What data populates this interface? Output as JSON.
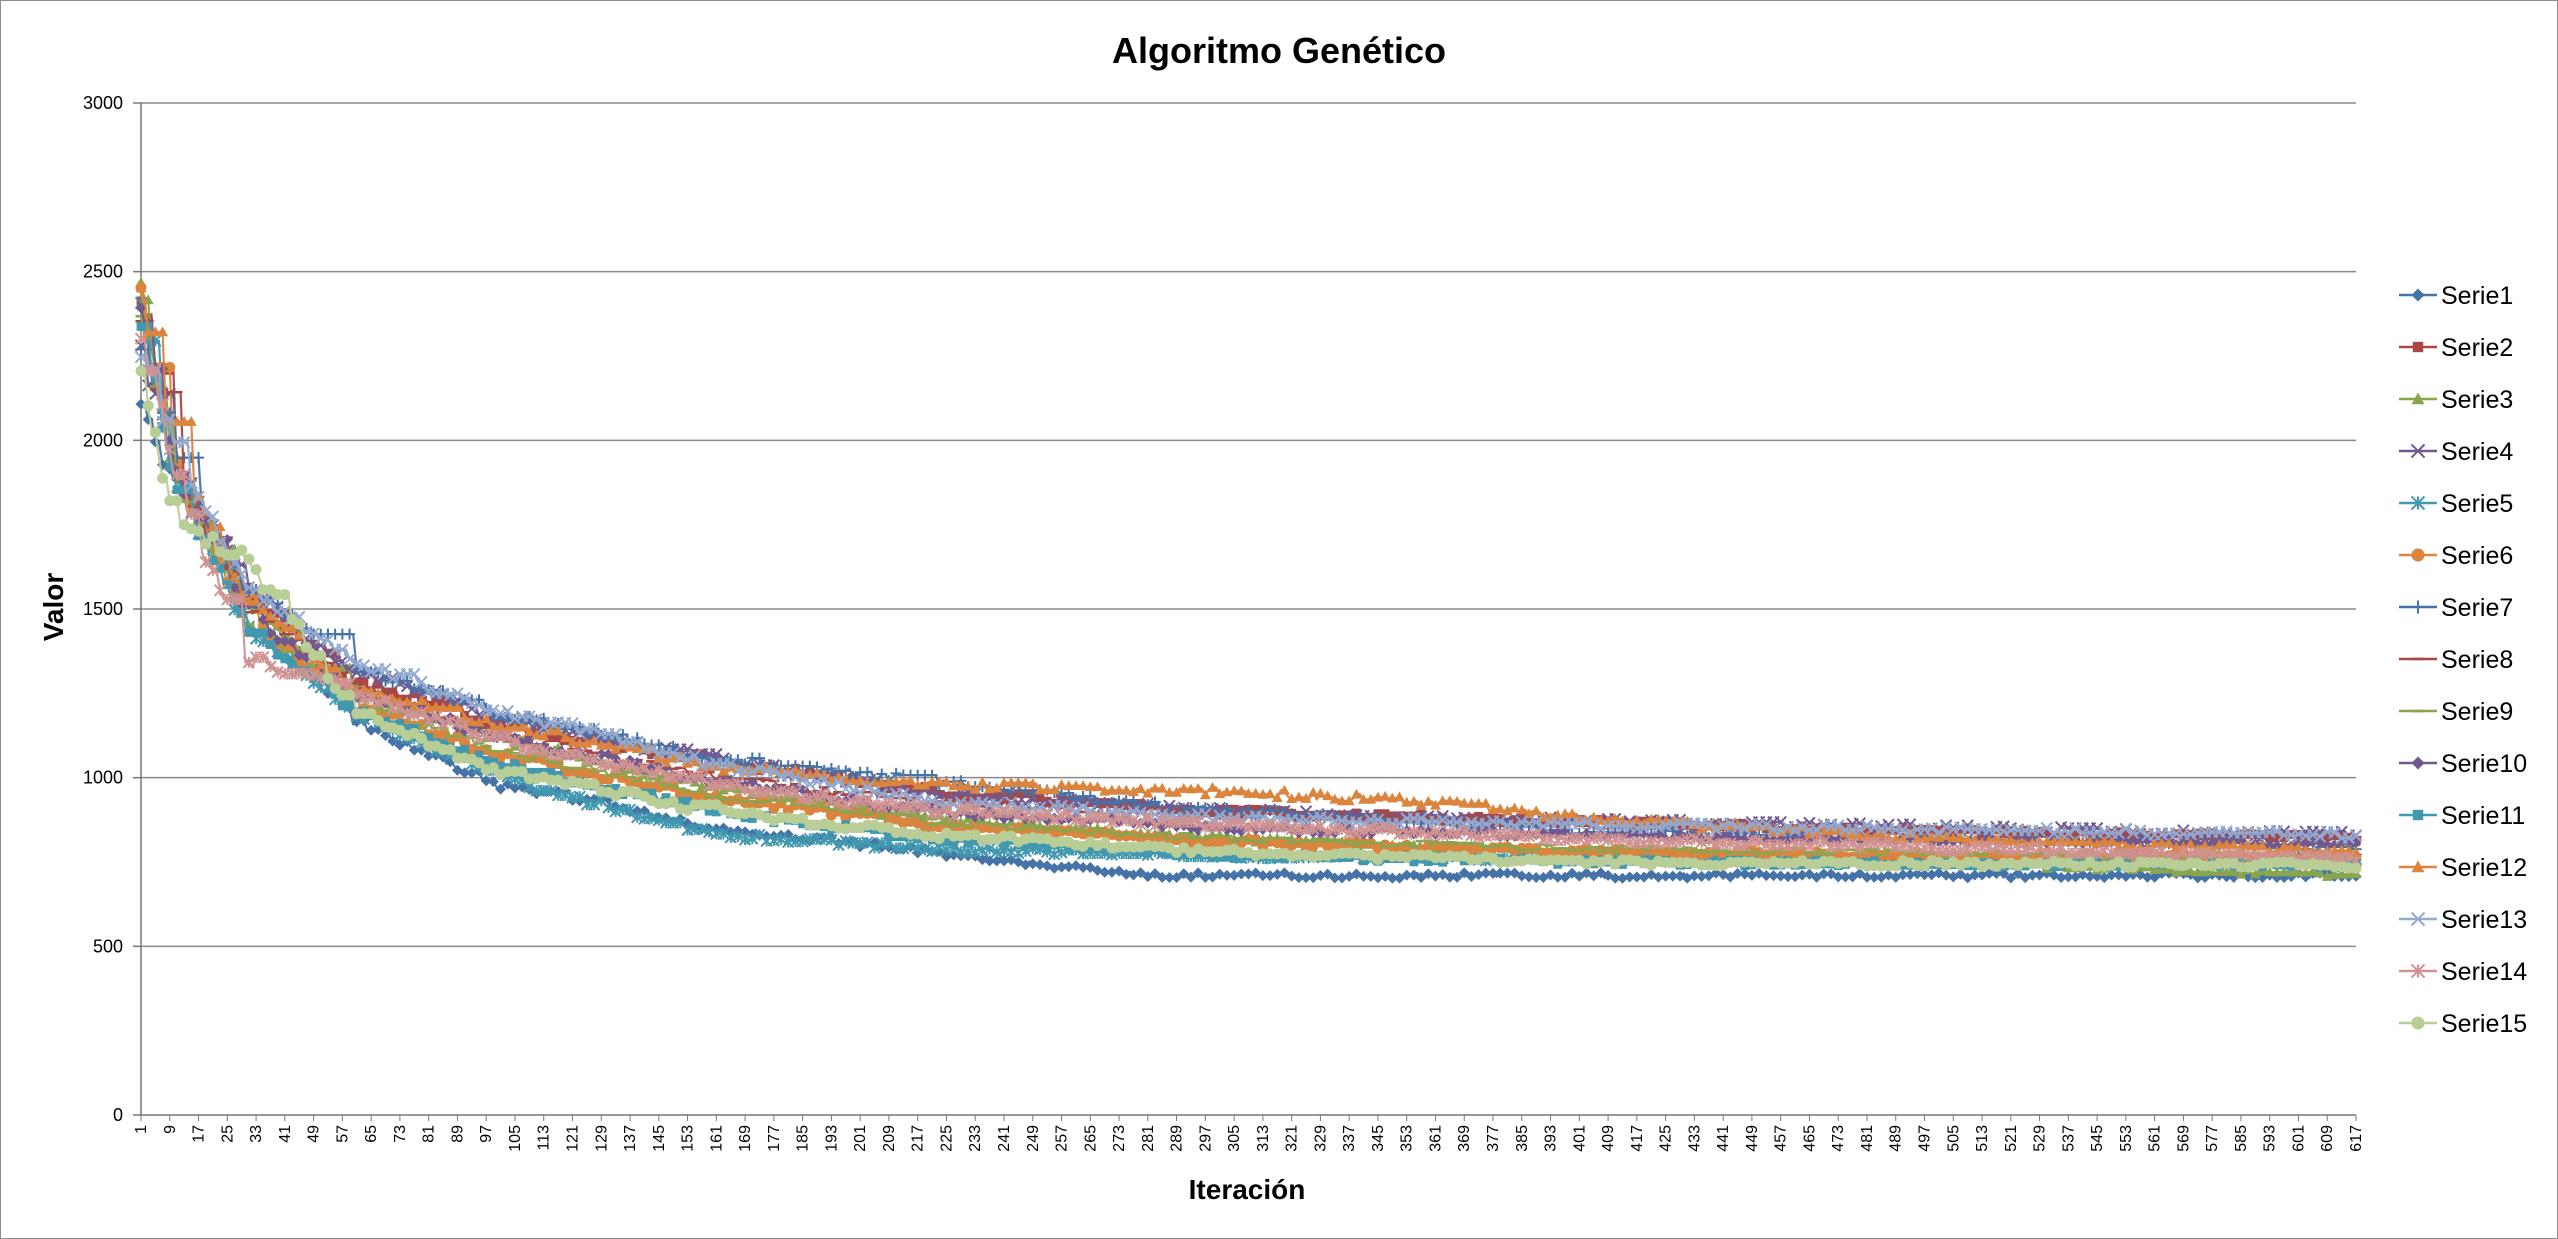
{
  "chart_data": {
    "type": "line",
    "title": "Algoritmo Genético",
    "xlabel": "Iteración",
    "ylabel": "Valor",
    "ylim": [
      0,
      3000
    ],
    "y_ticks": [
      "0",
      "500",
      "1000",
      "1500",
      "2000",
      "2500",
      "3000"
    ],
    "x_range": [
      1,
      617
    ],
    "x_tick_start": 1,
    "x_tick_step": 8,
    "grid": "horizontal",
    "legend_position": "right",
    "series": [
      {
        "name": "Serie1",
        "color": "#4572a7",
        "marker": "diamond",
        "x": [
          1,
          10,
          30,
          60,
          100,
          160,
          220,
          270,
          280,
          617
        ],
        "values": [
          2100,
          1880,
          1550,
          1170,
          980,
          850,
          780,
          720,
          710,
          710
        ]
      },
      {
        "name": "Serie2",
        "color": "#aa4643",
        "marker": "square",
        "x": [
          1,
          10,
          30,
          60,
          100,
          160,
          220,
          300,
          400,
          500,
          617
        ],
        "values": [
          2400,
          1930,
          1530,
          1290,
          1160,
          1050,
          960,
          900,
          870,
          840,
          820
        ]
      },
      {
        "name": "Serie3",
        "color": "#89a54e",
        "marker": "triangle",
        "x": [
          1,
          10,
          30,
          60,
          100,
          160,
          220,
          300,
          400,
          617
        ],
        "values": [
          2450,
          1880,
          1520,
          1260,
          1120,
          970,
          880,
          820,
          780,
          710
        ]
      },
      {
        "name": "Serie4",
        "color": "#71588f",
        "marker": "x",
        "x": [
          1,
          10,
          30,
          60,
          100,
          160,
          220,
          300,
          400,
          500,
          617
        ],
        "values": [
          2260,
          1940,
          1560,
          1320,
          1180,
          1050,
          950,
          900,
          870,
          850,
          830
        ]
      },
      {
        "name": "Serie5",
        "color": "#4198af",
        "marker": "star",
        "x": [
          1,
          10,
          30,
          60,
          100,
          160,
          220,
          300,
          400,
          617
        ],
        "values": [
          2380,
          1900,
          1450,
          1200,
          1000,
          830,
          790,
          770,
          760,
          760
        ]
      },
      {
        "name": "Serie6",
        "color": "#db843d",
        "marker": "circle",
        "x": [
          1,
          10,
          30,
          60,
          100,
          160,
          220,
          300,
          400,
          617
        ],
        "values": [
          2420,
          1910,
          1480,
          1220,
          1070,
          940,
          860,
          810,
          780,
          760
        ]
      },
      {
        "name": "Serie7",
        "color": "#4572a7",
        "marker": "plus",
        "x": [
          1,
          10,
          30,
          60,
          100,
          160,
          220,
          300,
          400,
          617
        ],
        "values": [
          2300,
          1960,
          1560,
          1330,
          1190,
          1060,
          990,
          900,
          840,
          790
        ]
      },
      {
        "name": "Serie8",
        "color": "#aa4643",
        "marker": "dash",
        "x": [
          1,
          10,
          30,
          60,
          100,
          160,
          220,
          300,
          400,
          617
        ],
        "values": [
          2380,
          1910,
          1510,
          1270,
          1130,
          1000,
          930,
          890,
          860,
          830
        ]
      },
      {
        "name": "Serie9",
        "color": "#89a54e",
        "marker": "dash",
        "x": [
          1,
          10,
          30,
          60,
          100,
          160,
          220,
          300,
          400,
          617
        ],
        "values": [
          2390,
          1880,
          1470,
          1230,
          1080,
          950,
          870,
          820,
          790,
          760
        ]
      },
      {
        "name": "Serie10",
        "color": "#71588f",
        "marker": "diamond",
        "x": [
          1,
          10,
          30,
          60,
          100,
          160,
          220,
          300,
          400,
          617
        ],
        "values": [
          2410,
          1920,
          1500,
          1250,
          1120,
          990,
          900,
          850,
          830,
          800
        ]
      },
      {
        "name": "Serie11",
        "color": "#4198af",
        "marker": "square",
        "x": [
          1,
          10,
          30,
          60,
          100,
          160,
          220,
          300,
          400,
          617
        ],
        "values": [
          2350,
          1890,
          1450,
          1200,
          1040,
          900,
          820,
          770,
          750,
          740
        ]
      },
      {
        "name": "Serie12",
        "color": "#db843d",
        "marker": "triangle",
        "x": [
          1,
          10,
          30,
          60,
          100,
          160,
          220,
          300,
          360,
          400,
          500,
          617
        ],
        "values": [
          2460,
          1970,
          1530,
          1270,
          1160,
          1030,
          980,
          960,
          930,
          880,
          820,
          780
        ]
      },
      {
        "name": "Serie13",
        "color": "#93a9cf",
        "marker": "x",
        "x": [
          1,
          10,
          30,
          60,
          100,
          160,
          220,
          300,
          400,
          617
        ],
        "values": [
          2250,
          1980,
          1580,
          1340,
          1200,
          1040,
          930,
          880,
          860,
          830
        ]
      },
      {
        "name": "Serie14",
        "color": "#d19392",
        "marker": "star",
        "x": [
          1,
          10,
          30,
          60,
          100,
          160,
          220,
          300,
          400,
          617
        ],
        "values": [
          2300,
          1900,
          1350,
          1260,
          1110,
          980,
          900,
          860,
          820,
          760
        ]
      },
      {
        "name": "Serie15",
        "color": "#b9cd96",
        "marker": "circle",
        "x": [
          1,
          10,
          30,
          60,
          100,
          160,
          220,
          300,
          400,
          617
        ],
        "values": [
          2200,
          1750,
          1650,
          1200,
          1020,
          900,
          830,
          780,
          750,
          740
        ]
      }
    ]
  }
}
